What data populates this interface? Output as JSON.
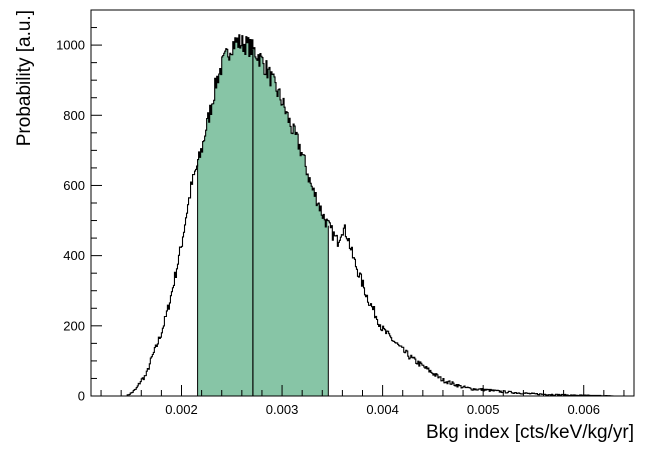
{
  "chart_data": {
    "type": "histogram",
    "title": "",
    "xlabel": "Bkg index [cts/keV/kg/yr]",
    "ylabel": "Probability [a.u.]",
    "xlim": [
      0.0011,
      0.0065
    ],
    "ylim": [
      0,
      1100
    ],
    "x_ticks": [
      {
        "value": 0.002,
        "label": "0.002"
      },
      {
        "value": 0.003,
        "label": "0.003"
      },
      {
        "value": 0.004,
        "label": "0.004"
      },
      {
        "value": 0.005,
        "label": "0.005"
      },
      {
        "value": 0.006,
        "label": "0.006"
      }
    ],
    "y_ticks": [
      {
        "value": 0,
        "label": "0"
      },
      {
        "value": 200,
        "label": "200"
      },
      {
        "value": 400,
        "label": "400"
      },
      {
        "value": 600,
        "label": "600"
      },
      {
        "value": 800,
        "label": "800"
      },
      {
        "value": 1000,
        "label": "1000"
      }
    ],
    "grid": false,
    "histogram": {
      "x": [
        0.00145,
        0.0015,
        0.00155,
        0.0016,
        0.00165,
        0.0017,
        0.00175,
        0.0018,
        0.00185,
        0.0019,
        0.00195,
        0.002,
        0.00205,
        0.0021,
        0.00215,
        0.0022,
        0.00225,
        0.0023,
        0.00235,
        0.0024,
        0.00245,
        0.0025,
        0.00255,
        0.0026,
        0.00265,
        0.0027,
        0.00275,
        0.0028,
        0.00285,
        0.0029,
        0.00295,
        0.003,
        0.00305,
        0.0031,
        0.00315,
        0.0032,
        0.00325,
        0.0033,
        0.00335,
        0.0034,
        0.00345,
        0.0035,
        0.00355,
        0.0036,
        0.00365,
        0.0037,
        0.00375,
        0.0038,
        0.00385,
        0.0039,
        0.00395,
        0.004,
        0.0041,
        0.0042,
        0.0043,
        0.0044,
        0.0045,
        0.0046,
        0.0047,
        0.0048,
        0.0049,
        0.005,
        0.0051,
        0.0052,
        0.0053,
        0.0054,
        0.0055,
        0.0056,
        0.0057,
        0.0058,
        0.0059,
        0.006,
        0.0061,
        0.0062,
        0.0063,
        0.0064
      ],
      "y": [
        0,
        8,
        20,
        45,
        60,
        105,
        140,
        180,
        230,
        290,
        360,
        430,
        520,
        600,
        650,
        700,
        770,
        830,
        900,
        940,
        970,
        1000,
        1010,
        1005,
        1000,
        990,
        975,
        955,
        930,
        900,
        870,
        840,
        800,
        760,
        730,
        690,
        640,
        590,
        560,
        520,
        490,
        465,
        440,
        480,
        460,
        400,
        360,
        320,
        280,
        250,
        220,
        190,
        160,
        130,
        105,
        85,
        65,
        45,
        35,
        25,
        20,
        18,
        15,
        12,
        10,
        8,
        6,
        5,
        4,
        3,
        2,
        2,
        1,
        1,
        0,
        0
      ]
    },
    "shaded_interval": {
      "from": 0.00216,
      "to": 0.00346,
      "color": "#87c5a6"
    },
    "central_line": 0.00271,
    "line_color": "#000000"
  }
}
